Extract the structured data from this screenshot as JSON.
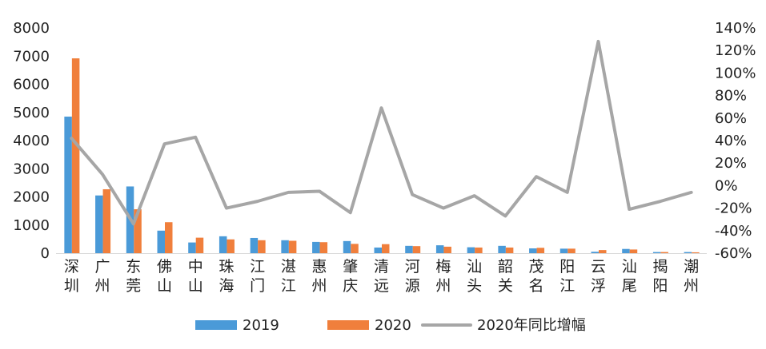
{
  "chart_data": {
    "type": "bar",
    "categories": [
      "深圳",
      "广州",
      "东莞",
      "佛山",
      "中山",
      "珠海",
      "江门",
      "湛江",
      "惠州",
      "肇庆",
      "清远",
      "河源",
      "梅州",
      "汕头",
      "韶关",
      "茂名",
      "阳江",
      "云浮",
      "汕尾",
      "揭阳",
      "潮州"
    ],
    "series": [
      {
        "name": "2019",
        "kind": "bar",
        "axis": "left",
        "color": "#4a9ad8",
        "values": [
          4850,
          2050,
          2370,
          800,
          380,
          600,
          540,
          460,
          400,
          430,
          200,
          260,
          280,
          210,
          260,
          170,
          160,
          50,
          150,
          40,
          40
        ]
      },
      {
        "name": "2020",
        "kind": "bar",
        "axis": "left",
        "color": "#f07f3c",
        "values": [
          6920,
          2270,
          1560,
          1100,
          550,
          490,
          460,
          440,
          390,
          330,
          320,
          250,
          230,
          200,
          200,
          190,
          160,
          110,
          130,
          40,
          30
        ]
      },
      {
        "name": "2020年同比增幅",
        "kind": "line",
        "axis": "right",
        "color": "#a6a6a6",
        "values": [
          42,
          10,
          -34,
          37,
          43,
          -20,
          -14,
          -6,
          -5,
          -24,
          69,
          -8,
          -20,
          -9,
          -27,
          8,
          -6,
          128,
          -21,
          -14,
          -6
        ]
      }
    ],
    "y_left": {
      "min": 0,
      "max": 8000,
      "ticks": [
        0,
        1000,
        2000,
        3000,
        4000,
        5000,
        6000,
        7000,
        8000
      ],
      "tick_labels": [
        "0",
        "1000",
        "2000",
        "3000",
        "4000",
        "5000",
        "6000",
        "7000",
        "8000"
      ]
    },
    "y_right": {
      "min": -60,
      "max": 140,
      "ticks": [
        -60,
        -40,
        -20,
        0,
        20,
        40,
        60,
        80,
        100,
        120,
        140
      ],
      "tick_labels": [
        "-60%",
        "-40%",
        "-20%",
        "0%",
        "20%",
        "40%",
        "60%",
        "80%",
        "100%",
        "120%",
        "140%"
      ]
    },
    "grid": false,
    "legend_position": "bottom-center",
    "legend": [
      "2019",
      "2020",
      "2020年同比增幅"
    ]
  }
}
